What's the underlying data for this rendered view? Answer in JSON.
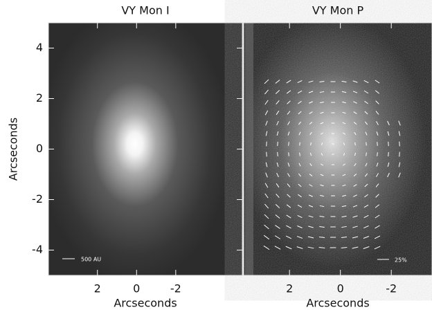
{
  "chart_data": [
    {
      "type": "image",
      "title": "VY Mon I",
      "xlabel": "Arcseconds",
      "ylabel": "Arcseconds",
      "xlim": [
        4.5,
        -5.4
      ],
      "ylim": [
        -5,
        5
      ],
      "xticks": [
        2,
        0,
        -2
      ],
      "yticks": [
        -4,
        -2,
        0,
        2,
        4
      ],
      "annotation": "500 AU"
    },
    {
      "type": "image",
      "title": "VY Mon P",
      "xlabel": "Arcseconds",
      "xlim": [
        3.8,
        -3.6
      ],
      "ylim": [
        -5,
        5
      ],
      "xticks": [
        2,
        0,
        -2
      ],
      "annotation": "25%"
    }
  ]
}
